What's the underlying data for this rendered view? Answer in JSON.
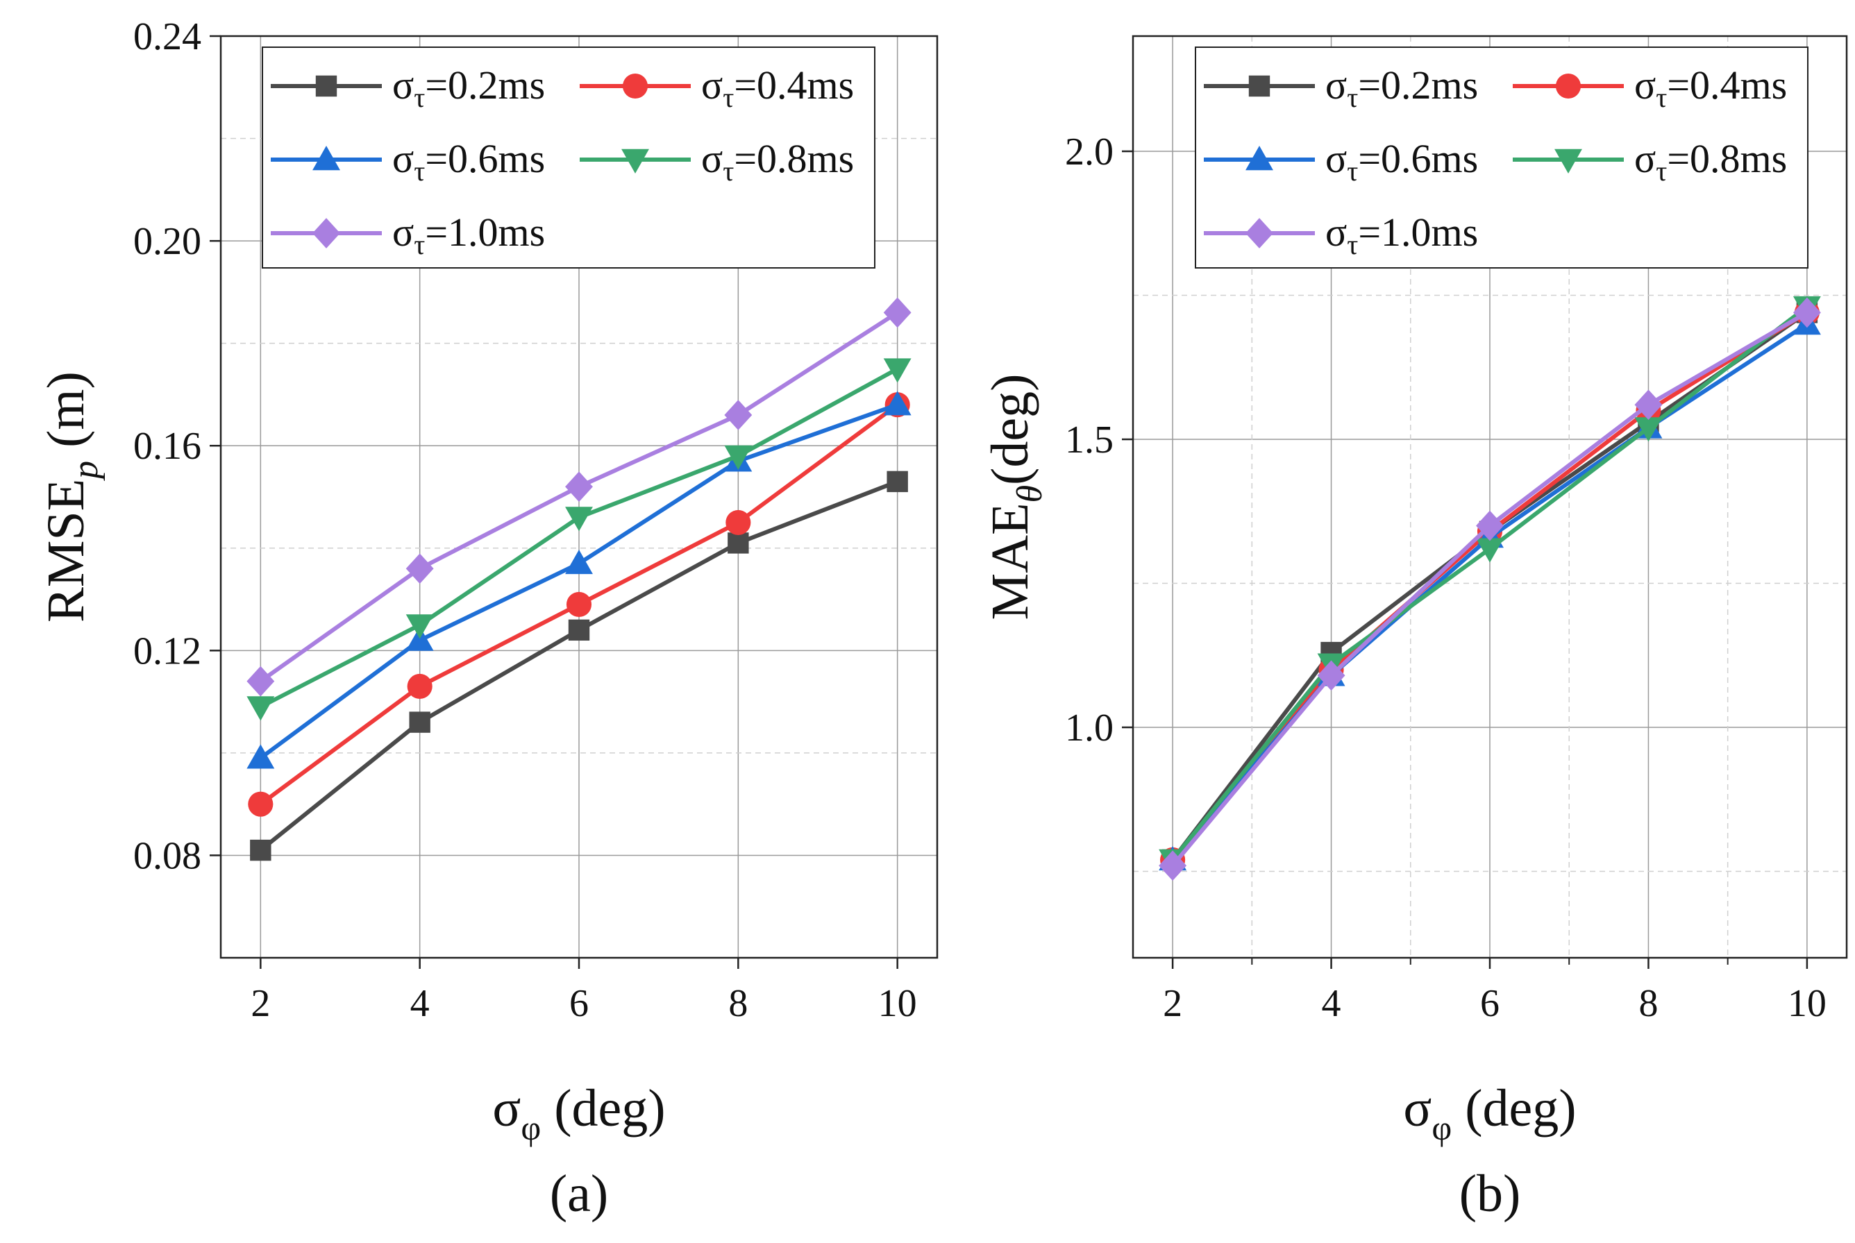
{
  "chart_data": [
    {
      "type": "line",
      "caption": "(a)",
      "xlabel": {
        "main": "σ",
        "sub": "φ",
        "unit": " (deg)"
      },
      "ylabel": {
        "main": "RMSE",
        "sub": "p",
        "unit": " (m)"
      },
      "x": [
        2,
        4,
        6,
        8,
        10
      ],
      "xlim": [
        1.5,
        10.5
      ],
      "ylim": [
        0.06,
        0.24
      ],
      "xticks": [
        "2",
        "4",
        "6",
        "8",
        "10"
      ],
      "yticks": [
        "0.08",
        "0.12",
        "0.16",
        "0.20",
        "0.24"
      ],
      "ytick_values": [
        0.08,
        0.12,
        0.16,
        0.2,
        0.24
      ],
      "grid": true,
      "legend_position": "top-right",
      "series": [
        {
          "name": "σ",
          "sub": "τ",
          "suffix": "=0.2ms",
          "color": "#4a4a4a",
          "marker": "square",
          "values": [
            0.081,
            0.106,
            0.124,
            0.141,
            0.153
          ]
        },
        {
          "name": "σ",
          "sub": "τ",
          "suffix": "=0.4ms",
          "color": "#ef3b3b",
          "marker": "circle",
          "values": [
            0.09,
            0.113,
            0.129,
            0.145,
            0.168
          ]
        },
        {
          "name": "σ",
          "sub": "τ",
          "suffix": "=0.6ms",
          "color": "#1f6fd6",
          "marker": "triangle-up",
          "values": [
            0.099,
            0.122,
            0.137,
            0.157,
            0.168
          ]
        },
        {
          "name": "σ",
          "sub": "τ",
          "suffix": "=0.8ms",
          "color": "#3aa76d",
          "marker": "triangle-down",
          "values": [
            0.109,
            0.125,
            0.146,
            0.158,
            0.175
          ]
        },
        {
          "name": "σ",
          "sub": "τ",
          "suffix": "=1.0ms",
          "color": "#a97fe0",
          "marker": "diamond",
          "values": [
            0.114,
            0.136,
            0.152,
            0.166,
            0.186
          ]
        }
      ]
    },
    {
      "type": "line",
      "caption": "(b)",
      "xlabel": {
        "main": "σ",
        "sub": "φ",
        "unit": " (deg)"
      },
      "ylabel": {
        "main": "MAE",
        "sub": "θ",
        "unit": "(deg)"
      },
      "x": [
        2,
        4,
        6,
        8,
        10
      ],
      "xlim": [
        1.5,
        10.5
      ],
      "ylim": [
        0.6,
        2.2
      ],
      "xticks": [
        "2",
        "4",
        "6",
        "8",
        "10"
      ],
      "yticks": [
        "1.0",
        "1.5",
        "2.0"
      ],
      "ytick_values": [
        1.0,
        1.5,
        2.0
      ],
      "grid": true,
      "legend_position": "top-right",
      "series": [
        {
          "name": "σ",
          "sub": "τ",
          "suffix": "=0.2ms",
          "color": "#4a4a4a",
          "marker": "square",
          "values": [
            0.77,
            1.13,
            1.34,
            1.53,
            1.72
          ]
        },
        {
          "name": "σ",
          "sub": "τ",
          "suffix": "=0.4ms",
          "color": "#ef3b3b",
          "marker": "circle",
          "values": [
            0.77,
            1.1,
            1.34,
            1.55,
            1.72
          ]
        },
        {
          "name": "σ",
          "sub": "τ",
          "suffix": "=0.6ms",
          "color": "#1f6fd6",
          "marker": "triangle-up",
          "values": [
            0.77,
            1.09,
            1.33,
            1.52,
            1.7
          ]
        },
        {
          "name": "σ",
          "sub": "τ",
          "suffix": "=0.8ms",
          "color": "#3aa76d",
          "marker": "triangle-down",
          "values": [
            0.77,
            1.11,
            1.31,
            1.52,
            1.73
          ]
        },
        {
          "name": "σ",
          "sub": "τ",
          "suffix": "=1.0ms",
          "color": "#a97fe0",
          "marker": "diamond",
          "values": [
            0.76,
            1.09,
            1.35,
            1.56,
            1.72
          ]
        }
      ]
    }
  ]
}
